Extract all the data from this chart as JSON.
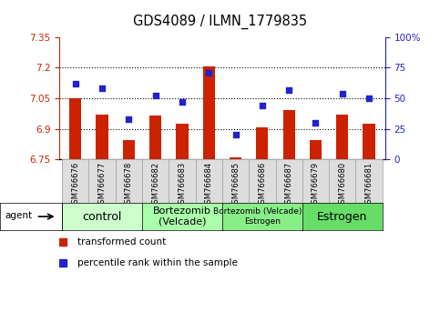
{
  "title": "GDS4089 / ILMN_1779835",
  "samples": [
    "GSM766676",
    "GSM766677",
    "GSM766678",
    "GSM766682",
    "GSM766683",
    "GSM766684",
    "GSM766685",
    "GSM766686",
    "GSM766687",
    "GSM766679",
    "GSM766680",
    "GSM766681"
  ],
  "bar_values": [
    7.05,
    6.97,
    6.845,
    6.965,
    6.925,
    7.205,
    6.762,
    6.905,
    6.99,
    6.845,
    6.97,
    6.925
  ],
  "dot_values": [
    62,
    58,
    33,
    52,
    47,
    71,
    20,
    44,
    57,
    30,
    54,
    50
  ],
  "ylim_left": [
    6.75,
    7.35
  ],
  "ylim_right": [
    0,
    100
  ],
  "yticks_left": [
    6.75,
    6.9,
    7.05,
    7.2,
    7.35
  ],
  "yticks_right": [
    0,
    25,
    50,
    75,
    100
  ],
  "ytick_labels_left": [
    "6.75",
    "6.9",
    "7.05",
    "7.2",
    "7.35"
  ],
  "ytick_labels_right": [
    "0",
    "25",
    "50",
    "75",
    "100%"
  ],
  "hlines": [
    6.9,
    7.05,
    7.2
  ],
  "bar_color": "#cc2200",
  "dot_color": "#2222cc",
  "bar_width": 0.45,
  "groups": [
    {
      "label": "control",
      "start": 0,
      "end": 3,
      "color": "#ccffcc",
      "fontsize": 9
    },
    {
      "label": "Bortezomib\n(Velcade)",
      "start": 3,
      "end": 6,
      "color": "#aaffaa",
      "fontsize": 8
    },
    {
      "label": "Bortezomib (Velcade) +\nEstrogen",
      "start": 6,
      "end": 9,
      "color": "#88ee88",
      "fontsize": 6.5
    },
    {
      "label": "Estrogen",
      "start": 9,
      "end": 12,
      "color": "#66dd66",
      "fontsize": 9
    }
  ],
  "legend_items": [
    {
      "label": "transformed count",
      "color": "#cc2200"
    },
    {
      "label": "percentile rank within the sample",
      "color": "#2222cc"
    }
  ],
  "agent_label": "agent",
  "left_color": "#cc2200",
  "right_color": "#2222cc",
  "tick_bg": "#dddddd",
  "tick_border": "#888888"
}
